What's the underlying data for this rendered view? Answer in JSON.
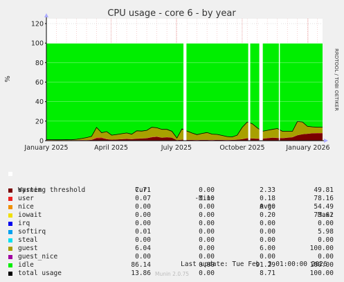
{
  "title": "CPU usage - core 6 - by year",
  "side_label": "RRDTOOL / TOBI OETIKER",
  "chart_data": {
    "type": "area",
    "title": "CPU usage - core 6 - by year",
    "ylabel": "%",
    "ylim": [
      0,
      125
    ],
    "yticks": [
      0,
      20,
      40,
      60,
      80,
      100,
      120
    ],
    "x_tick_labels": [
      "January 2025",
      "April 2025",
      "July 2025",
      "October 2025",
      "January 2026"
    ],
    "x_tick_weeks": [
      0,
      12.9,
      25.9,
      39,
      52.1
    ],
    "grid": true,
    "warning_threshold": 100,
    "gaps_weeks": [
      [
        27.3,
        27.9
      ],
      [
        40.2,
        40.6
      ],
      [
        42.4,
        43.1
      ],
      [
        46.3,
        46.5
      ]
    ],
    "x_weeks": [
      0,
      1,
      2,
      3,
      4,
      5,
      6,
      7,
      8,
      9,
      10,
      11,
      12,
      13,
      14,
      15,
      16,
      17,
      18,
      19,
      20,
      21,
      22,
      23,
      24,
      25,
      26,
      27,
      28,
      29,
      30,
      31,
      32,
      33,
      34,
      35,
      36,
      37,
      38,
      39,
      40,
      41,
      42,
      43,
      44,
      45,
      46,
      47,
      48,
      49,
      50,
      51,
      52,
      53,
      54,
      55
    ],
    "series": [
      {
        "name": "system",
        "color": "#7a0000",
        "values": [
          0.5,
          0.4,
          0.3,
          0.4,
          0.5,
          0.4,
          0.5,
          0.6,
          0.5,
          0.8,
          2.5,
          2.8,
          1.5,
          1.0,
          1.2,
          1.5,
          1.8,
          1.5,
          2.0,
          2.2,
          2.5,
          3.5,
          4.0,
          3.0,
          3.5,
          3.0,
          0.5,
          1.0,
          0.8,
          0.7,
          0.6,
          0.8,
          0.7,
          0.6,
          0.8,
          0.7,
          0.6,
          0.7,
          1.0,
          1.5,
          2.5,
          2.2,
          2.0,
          2.0,
          2.5,
          3.0,
          2.8,
          2.5,
          3.0,
          3.5,
          5.5,
          6.5,
          7.0,
          7.5,
          7.7,
          7.7
        ]
      },
      {
        "name": "user",
        "color": "#ee2222",
        "values": [
          0.1,
          0.1,
          0.1,
          0.1,
          0.1,
          0.1,
          0.1,
          0.1,
          0.1,
          0.1,
          0.6,
          0.4,
          0.3,
          0.1,
          0.1,
          0.1,
          0.1,
          0.1,
          0.1,
          0.1,
          0.1,
          0.2,
          0.2,
          0.1,
          0.1,
          0.1,
          0.1,
          0.1,
          0.1,
          0.1,
          0.1,
          0.1,
          0.1,
          0.1,
          0.1,
          0.1,
          0.1,
          0.1,
          0.1,
          0.1,
          0.1,
          0.1,
          0.1,
          0.1,
          0.1,
          0.1,
          0.1,
          0.1,
          0.1,
          0.1,
          0.1,
          0.1,
          0.1,
          0.1,
          0.1,
          0.1
        ]
      },
      {
        "name": "guest",
        "color": "#a8a000",
        "values": [
          0.5,
          0.5,
          0.5,
          0.4,
          0.5,
          0.4,
          0.8,
          1.5,
          2.5,
          3.5,
          10.5,
          5.0,
          7.5,
          4.5,
          5.0,
          5.5,
          6.0,
          5.0,
          8.0,
          7.5,
          8.0,
          10.0,
          9.0,
          8.5,
          8.0,
          6.5,
          2.0,
          11.0,
          9.0,
          7.0,
          5.5,
          6.5,
          7.5,
          6.0,
          5.5,
          4.5,
          3.5,
          3.0,
          4.5,
          12.0,
          16.5,
          15.0,
          11.0,
          7.5,
          8.0,
          8.5,
          9.5,
          7.0,
          6.5,
          6.0,
          14.0,
          12.5,
          7.5,
          6.5,
          6.0,
          6.0
        ]
      },
      {
        "name": "idle",
        "color": "#00ee00",
        "values": [
          98.9,
          99.0,
          99.1,
          99.1,
          98.9,
          99.1,
          98.6,
          97.8,
          96.9,
          95.6,
          86.4,
          91.8,
          90.7,
          94.4,
          93.7,
          92.9,
          92.1,
          93.4,
          89.9,
          90.2,
          89.4,
          86.3,
          86.8,
          88.4,
          88.4,
          90.4,
          97.4,
          87.9,
          90.1,
          92.2,
          93.8,
          92.6,
          91.7,
          93.3,
          93.6,
          94.7,
          95.8,
          96.2,
          94.4,
          86.4,
          80.9,
          82.7,
          86.9,
          90.4,
          89.4,
          88.4,
          87.6,
          90.4,
          90.4,
          90.4,
          80.4,
          80.9,
          85.4,
          85.9,
          86.2,
          86.2
        ]
      }
    ]
  },
  "legend": {
    "warning": "Warning threshold",
    "headers": {
      "cur": "Cur:",
      "min": "Min:",
      "avg": "Avg:",
      "max": "Max:"
    },
    "rows": [
      {
        "name": "system",
        "color": "#7a0000",
        "cur": "7.71",
        "min": "0.00",
        "avg": "2.33",
        "max": "49.81"
      },
      {
        "name": "user",
        "color": "#ee2222",
        "cur": "0.07",
        "min": "-1.10",
        "avg": "0.18",
        "max": "78.16"
      },
      {
        "name": "nice",
        "color": "#f09000",
        "cur": "0.00",
        "min": "0.00",
        "avg": "0.00",
        "max": "54.49"
      },
      {
        "name": "iowait",
        "color": "#f0e000",
        "cur": "0.00",
        "min": "0.00",
        "avg": "0.20",
        "max": "73.62"
      },
      {
        "name": "irq",
        "color": "#0000ee",
        "cur": "0.00",
        "min": "0.00",
        "avg": "0.00",
        "max": "0.00"
      },
      {
        "name": "softirq",
        "color": "#00a0f0",
        "cur": "0.01",
        "min": "0.00",
        "avg": "0.00",
        "max": "5.98"
      },
      {
        "name": "steal",
        "color": "#00e0f0",
        "cur": "0.00",
        "min": "0.00",
        "avg": "0.00",
        "max": "0.00"
      },
      {
        "name": "guest",
        "color": "#a8a000",
        "cur": "6.04",
        "min": "0.00",
        "avg": "6.00",
        "max": "100.00"
      },
      {
        "name": "guest_nice",
        "color": "#a000a0",
        "cur": "0.00",
        "min": "0.00",
        "avg": "0.00",
        "max": "0.00"
      },
      {
        "name": "idle",
        "color": "#00ee00",
        "cur": "86.14",
        "min": "0.00",
        "avg": "91.29",
        "max": "100.00"
      },
      {
        "name": "total usage",
        "color": "#000000",
        "cur": "13.86",
        "min": "0.00",
        "avg": "8.71",
        "max": "100.00"
      }
    ]
  },
  "footer": {
    "last_update": "Last update: Tue Feb  3 01:00:00 2026",
    "version": "Munin 2.0.75"
  }
}
